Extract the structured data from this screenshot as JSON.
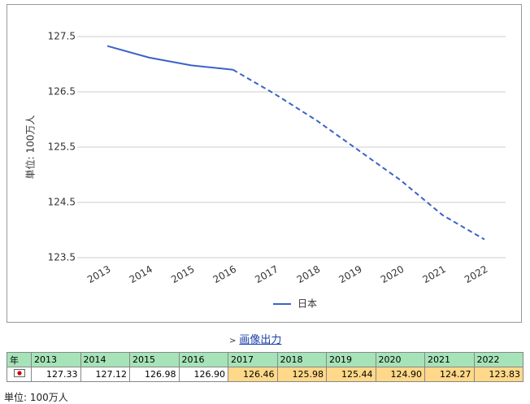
{
  "chart_data": {
    "type": "line",
    "y_label": "単位: 100万人",
    "categories": [
      "2013",
      "2014",
      "2015",
      "2016",
      "2017",
      "2018",
      "2019",
      "2020",
      "2021",
      "2022"
    ],
    "series": [
      {
        "name": "日本",
        "color": "#3a62c8",
        "values": [
          127.33,
          127.12,
          126.98,
          126.9,
          126.46,
          125.98,
          125.44,
          124.9,
          124.27,
          123.83
        ],
        "value_labels": [
          "127.33",
          "127.12",
          "126.98",
          "126.90",
          "126.46",
          "125.98",
          "125.44",
          "124.90",
          "124.27",
          "123.83"
        ]
      }
    ],
    "ylim": [
      123.5,
      127.5
    ],
    "yticks": [
      123.5,
      124.5,
      125.5,
      126.5,
      127.5
    ],
    "grid": true,
    "dashed_from": "2016"
  },
  "export_link": "画像出力",
  "table": {
    "corner": "年"
  },
  "footer": "単位: 100万人"
}
